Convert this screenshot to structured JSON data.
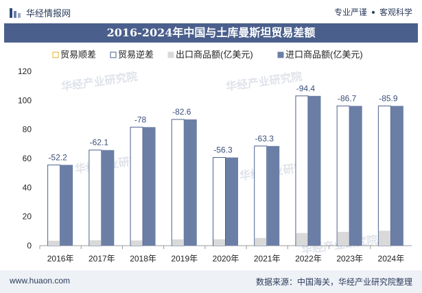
{
  "header": {
    "brand": "华经情报网",
    "tag1": "专业严谨",
    "tag2": "客观科学"
  },
  "footer": {
    "site": "www.huaon.com",
    "source": "数据来源：中国海关，华经产业研究院整理"
  },
  "watermark": "华经产业研究院",
  "colors": {
    "title_bg": "#4a5f8c",
    "import": "#6b7ea6",
    "export": "#d9d9d9",
    "deficit_outline": "#4a5f8c",
    "surplus_outline": "#e0b020"
  },
  "chart_data": {
    "type": "bar",
    "title": "2016-2024年中国与土库曼斯坦贸易差额",
    "categories": [
      "2016年",
      "2017年",
      "2018年",
      "2019年",
      "2020年",
      "2021年",
      "2022年",
      "2023年",
      "2024年"
    ],
    "ylim": [
      0,
      120
    ],
    "yticks": [
      0,
      20,
      40,
      60,
      80,
      100,
      120
    ],
    "legend_position": "top",
    "series": [
      {
        "name": "贸易顺差",
        "values": [
          null,
          null,
          null,
          null,
          null,
          null,
          null,
          null,
          null
        ]
      },
      {
        "name": "贸易逆差",
        "values": [
          -52.2,
          -62.1,
          -78,
          -82.6,
          -56.3,
          -63.3,
          -94.4,
          -86.7,
          -85.9
        ]
      },
      {
        "name": "出口商品额(亿美元)",
        "values": [
          3.4,
          3.7,
          3.6,
          4.3,
          4.4,
          5.3,
          8.7,
          9.5,
          10.3
        ]
      },
      {
        "name": "进口商品额(亿美元)",
        "values": [
          55.6,
          65.8,
          81.6,
          86.9,
          60.7,
          68.6,
          103.1,
          96.2,
          96.2
        ]
      }
    ],
    "data_labels": [
      "-52.2",
      "-62.1",
      "-78",
      "-82.6",
      "-56.3",
      "-63.3",
      "-94.4",
      "-86.7",
      "-85.9"
    ]
  }
}
